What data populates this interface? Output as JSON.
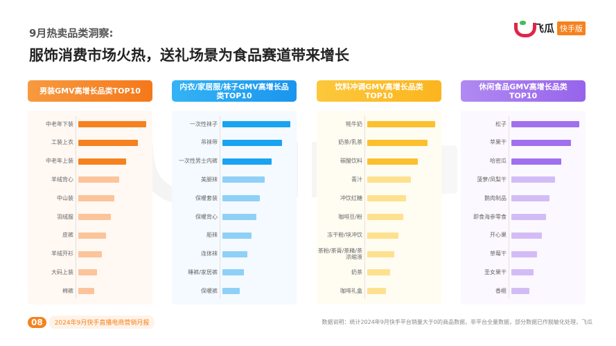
{
  "header": {
    "subtitle": "9月热卖品类洞察:",
    "title": "服饰消费市场火热，送礼场景为食品赛道带来增长"
  },
  "logo": {
    "name": "飞瓜",
    "badge": "快手版"
  },
  "watermark": "飞瓜 快手版",
  "footer": {
    "page": "08",
    "report": "2024年9月快手直播电商营销月报",
    "note": "数据说明：统计2024年9月快手平台销量大于0的商品数据，非平台全量数据，部分数据已作脱敏化处理，飞瓜"
  },
  "colors": {
    "orange": "#f5821f",
    "blue": "#1aa3f0",
    "yellow": "#fbc02d",
    "purple": "#a070ee"
  },
  "chart_data": [
    {
      "type": "bar",
      "orientation": "horizontal",
      "title": "男装GMV高增长品类TOP10",
      "color": "#f5821f",
      "light": "#fcc49a",
      "bg": "#fff8f3",
      "head": "linear-gradient(90deg,#f79a40,#f5781a)",
      "categories": [
        "中老年下装",
        "工装上衣",
        "中老年上装",
        "羊绒背心",
        "中山装",
        "羽绒服",
        "皮裤",
        "羊绒开衫",
        "大码上装",
        "棉裤"
      ],
      "values": [
        100,
        88,
        70,
        60,
        53,
        48,
        41,
        35,
        28,
        23
      ]
    },
    {
      "type": "bar",
      "orientation": "horizontal",
      "title": "内衣/家居服/袜子GMV高增长品类TOP10",
      "color": "#1aa3f0",
      "light": "#8fd0f7",
      "bg": "#f4faff",
      "head": "linear-gradient(90deg,#34b3f5,#1a95ee)",
      "categories": [
        "一次性袜子",
        "吊袜带",
        "一次性男士内裤",
        "美腿袜",
        "保暖套装",
        "保暖背心",
        "船袜",
        "连体袜",
        "睡裤/家居裤",
        "保暖裤"
      ],
      "values": [
        100,
        88,
        72,
        62,
        55,
        50,
        43,
        37,
        32,
        26
      ]
    },
    {
      "type": "bar",
      "orientation": "horizontal",
      "title": "饮料冲调GMV高增长品类TOP10",
      "color": "#fbc02d",
      "light": "#fde18f",
      "bg": "#fffcf2",
      "head": "linear-gradient(90deg,#fcc83c,#fbb51e)",
      "categories": [
        "牦牛奶",
        "奶茶/乳茶",
        "碳酸饮料",
        "青汁",
        "冲饮红糖",
        "咖啡豆/粉",
        "冻干粉/块冲饮",
        "茶粉/茶膏/茶精/茶浓缩液",
        "奶茶",
        "咖啡礼盒"
      ],
      "values": [
        100,
        89,
        74,
        64,
        57,
        53,
        46,
        40,
        34,
        28
      ]
    },
    {
      "type": "bar",
      "orientation": "horizontal",
      "title": "休闲食品GMV高增长品类TOP10",
      "color": "#a070ee",
      "light": "#d3bcf6",
      "bg": "#fbf8ff",
      "head": "linear-gradient(90deg,#b189f2,#9664ea)",
      "categories": [
        "松子",
        "苹果干",
        "哈密瓜",
        "菠萝/凤梨干",
        "鹅肉制品",
        "即食海参零食",
        "开心果",
        "草莓干",
        "圣女果干",
        "香榧"
      ],
      "values": [
        100,
        88,
        73,
        64,
        56,
        51,
        45,
        38,
        33,
        27
      ]
    }
  ]
}
